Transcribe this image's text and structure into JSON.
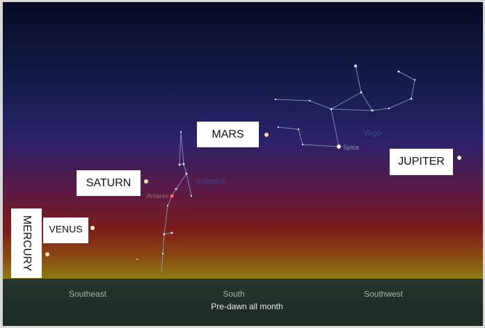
{
  "planets": [
    {
      "name": "MARS"
    },
    {
      "name": "SATURN"
    },
    {
      "name": "JUPITER"
    },
    {
      "name": "VENUS"
    },
    {
      "name": "MERCURY"
    }
  ],
  "constellations": [
    {
      "name": "Virgo",
      "star": "Spica"
    },
    {
      "name": "Scorpius",
      "star": "Antares"
    }
  ],
  "directions": [
    "Southeast",
    "South",
    "Southwest"
  ],
  "caption": "Pre-dawn all month"
}
